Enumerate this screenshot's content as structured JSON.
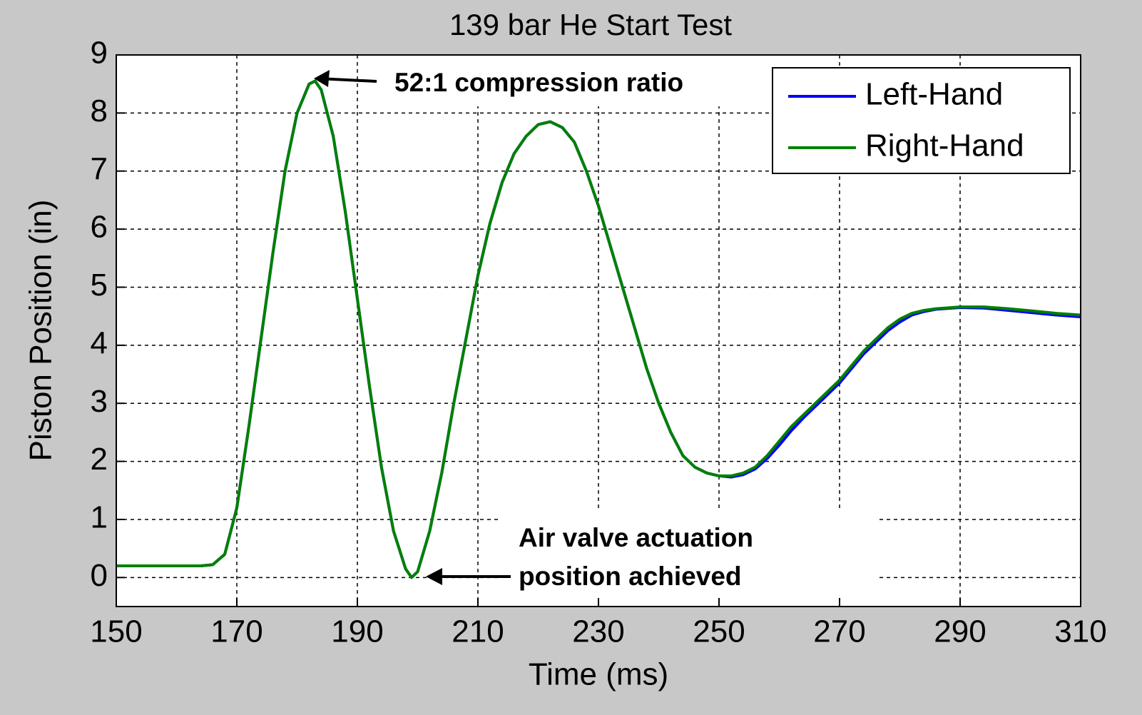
{
  "chart_data": {
    "type": "line",
    "title": "139 bar He Start Test",
    "xlabel": "Time (ms)",
    "ylabel": "Piston Position (in)",
    "x": [
      150,
      155,
      160,
      164,
      166,
      168,
      170,
      172,
      174,
      176,
      178,
      180,
      182,
      183,
      184,
      186,
      188,
      190,
      192,
      194,
      196,
      198,
      199,
      200,
      202,
      204,
      206,
      208,
      210,
      212,
      214,
      216,
      218,
      220,
      222,
      224,
      226,
      228,
      230,
      232,
      234,
      236,
      238,
      240,
      242,
      244,
      246,
      248,
      250,
      252,
      254,
      256,
      258,
      260,
      262,
      264,
      266,
      268,
      270,
      272,
      274,
      276,
      278,
      280,
      282,
      284,
      286,
      290,
      294,
      298,
      302,
      306,
      310
    ],
    "series": [
      {
        "name": "Left-Hand",
        "color": "#0000ff",
        "values": [
          0.2,
          0.2,
          0.2,
          0.2,
          0.22,
          0.4,
          1.2,
          2.6,
          4.1,
          5.6,
          7.0,
          8.0,
          8.5,
          8.55,
          8.4,
          7.6,
          6.3,
          4.8,
          3.3,
          1.9,
          0.8,
          0.15,
          0.0,
          0.1,
          0.8,
          1.8,
          3.0,
          4.1,
          5.2,
          6.1,
          6.8,
          7.3,
          7.6,
          7.8,
          7.85,
          7.75,
          7.5,
          7.0,
          6.4,
          5.7,
          5.0,
          4.3,
          3.6,
          3.0,
          2.5,
          2.1,
          1.9,
          1.8,
          1.75,
          1.73,
          1.77,
          1.87,
          2.05,
          2.28,
          2.53,
          2.75,
          2.95,
          3.15,
          3.35,
          3.6,
          3.85,
          4.05,
          4.25,
          4.4,
          4.52,
          4.58,
          4.62,
          4.65,
          4.64,
          4.6,
          4.56,
          4.52,
          4.49
        ]
      },
      {
        "name": "Right-Hand",
        "color": "#008000",
        "values": [
          0.2,
          0.2,
          0.2,
          0.2,
          0.22,
          0.4,
          1.2,
          2.6,
          4.1,
          5.6,
          7.0,
          8.0,
          8.5,
          8.55,
          8.4,
          7.6,
          6.3,
          4.8,
          3.3,
          1.9,
          0.8,
          0.15,
          0.0,
          0.1,
          0.8,
          1.8,
          3.0,
          4.1,
          5.2,
          6.1,
          6.8,
          7.3,
          7.6,
          7.8,
          7.85,
          7.75,
          7.5,
          7.0,
          6.4,
          5.7,
          5.0,
          4.3,
          3.6,
          3.0,
          2.5,
          2.1,
          1.9,
          1.8,
          1.75,
          1.75,
          1.8,
          1.9,
          2.1,
          2.35,
          2.6,
          2.8,
          3.0,
          3.2,
          3.4,
          3.65,
          3.9,
          4.1,
          4.3,
          4.45,
          4.55,
          4.6,
          4.63,
          4.66,
          4.66,
          4.63,
          4.59,
          4.55,
          4.52
        ]
      }
    ],
    "xlim": [
      150,
      310
    ],
    "xticks": [
      150,
      170,
      190,
      210,
      230,
      250,
      270,
      290,
      310
    ],
    "ylim": [
      -0.5,
      9
    ],
    "yticks": [
      0,
      1,
      2,
      3,
      4,
      5,
      6,
      7,
      8,
      9
    ],
    "grid": true,
    "legend": "upper right",
    "annotations": [
      "52:1 compression ratio",
      "Air valve actuation",
      "position achieved"
    ]
  }
}
